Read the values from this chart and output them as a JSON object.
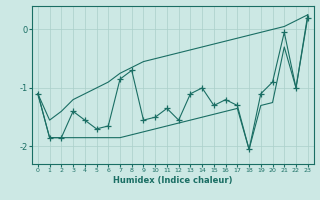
{
  "xlabel": "Humidex (Indice chaleur)",
  "bg_color": "#cce8e4",
  "line_color": "#1a6e64",
  "grid_color": "#aacfca",
  "x": [
    0,
    1,
    2,
    3,
    4,
    5,
    6,
    7,
    8,
    9,
    10,
    11,
    12,
    13,
    14,
    15,
    16,
    17,
    18,
    19,
    20,
    21,
    22,
    23
  ],
  "main_y": [
    -1.1,
    -1.85,
    -1.85,
    -1.4,
    -1.55,
    -1.7,
    -1.65,
    -0.85,
    -0.7,
    -1.55,
    -1.5,
    -1.35,
    -1.55,
    -1.1,
    -1.0,
    -1.3,
    -1.2,
    -1.3,
    -2.05,
    -1.1,
    -0.9,
    -0.05,
    -1.0,
    0.2
  ],
  "upper_y": [
    -1.1,
    -1.55,
    -1.4,
    -1.2,
    -1.1,
    -1.0,
    -0.9,
    -0.75,
    -0.65,
    -0.55,
    -0.5,
    -0.45,
    -0.4,
    -0.35,
    -0.3,
    -0.25,
    -0.2,
    -0.15,
    -0.1,
    -0.05,
    0.0,
    0.05,
    0.15,
    0.25
  ],
  "lower_y": [
    -1.1,
    -1.85,
    -1.85,
    -1.85,
    -1.85,
    -1.85,
    -1.85,
    -1.85,
    -1.8,
    -1.75,
    -1.7,
    -1.65,
    -1.6,
    -1.55,
    -1.5,
    -1.45,
    -1.4,
    -1.35,
    -2.05,
    -1.3,
    -1.25,
    -0.3,
    -1.0,
    0.25
  ],
  "ylim": [
    -2.3,
    0.4
  ],
  "xlim": [
    -0.5,
    23.5
  ],
  "yticks": [
    0,
    -1,
    -2
  ],
  "xticks": [
    0,
    1,
    2,
    3,
    4,
    5,
    6,
    7,
    8,
    9,
    10,
    11,
    12,
    13,
    14,
    15,
    16,
    17,
    18,
    19,
    20,
    21,
    22,
    23
  ]
}
